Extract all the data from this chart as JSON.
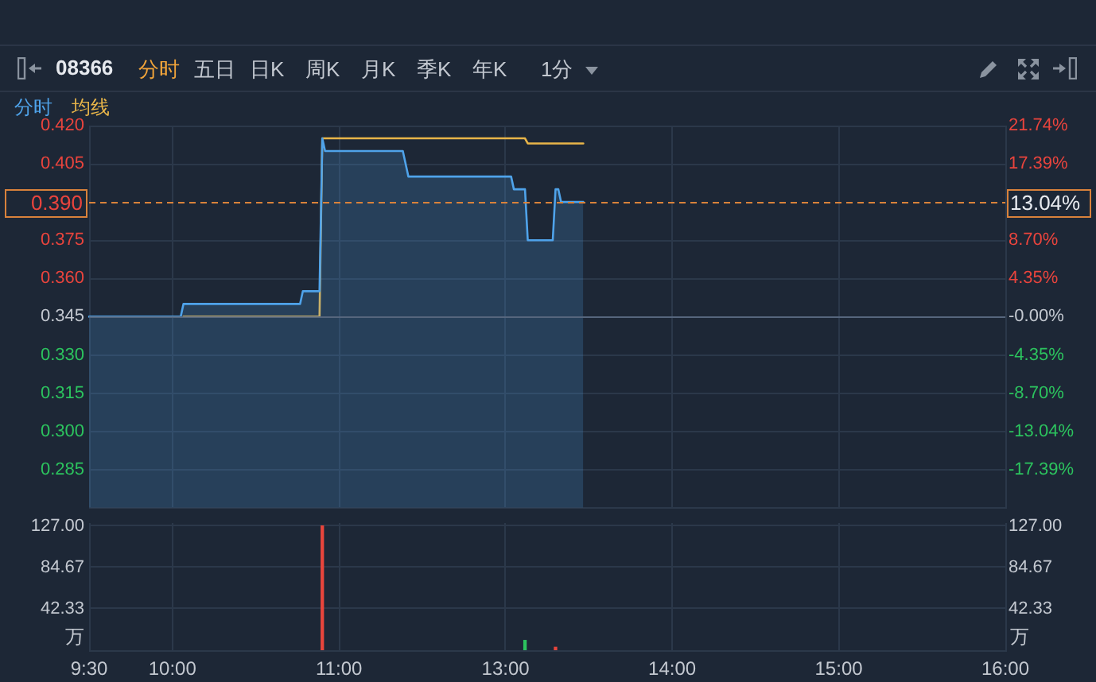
{
  "chart_data": [
    {
      "type": "area",
      "title": "08366",
      "annotations": [
        "分时",
        "五日",
        "日K",
        "周K",
        "月K",
        "季K",
        "年K",
        "1分",
        "13.04%"
      ],
      "categories": [
        null,
        null,
        null,
        null,
        null,
        null,
        null,
        null,
        null,
        null,
        null,
        null,
        null,
        null,
        null,
        null,
        null,
        null,
        null,
        null,
        null,
        null,
        null,
        null,
        null,
        null,
        null,
        null,
        null,
        null,
        null,
        null,
        null,
        null,
        null,
        null,
        null,
        null,
        null,
        null,
        null,
        null,
        null,
        null,
        null,
        null,
        null,
        null,
        null,
        null,
        null,
        null,
        null,
        null,
        null,
        null,
        null,
        null,
        null,
        null,
        null,
        null,
        null,
        null,
        null,
        null,
        null,
        null,
        null,
        null,
        null,
        null,
        null,
        null,
        null,
        null,
        null,
        null,
        null,
        null,
        null,
        null,
        null,
        null,
        null,
        null,
        null,
        null,
        null,
        null,
        null,
        null,
        null,
        null,
        null,
        null,
        null,
        null,
        null,
        null,
        null,
        null,
        null,
        null,
        null,
        null,
        null,
        null,
        null,
        null,
        null,
        null,
        null,
        null,
        null,
        null,
        null,
        null,
        null,
        null,
        null,
        null,
        null,
        null,
        null,
        null,
        null,
        null,
        null,
        null,
        null,
        null,
        null,
        null,
        null,
        null,
        null,
        null,
        null,
        null,
        null,
        null,
        null,
        null,
        null,
        null,
        null,
        null,
        null,
        null,
        null,
        null,
        null,
        null,
        null,
        null,
        null,
        null,
        null,
        null,
        null,
        null,
        null,
        null,
        null,
        null,
        null,
        null,
        null,
        null,
        null,
        null,
        null,
        null,
        null,
        null,
        null,
        null,
        null,
        null,
        null,
        null,
        null,
        null,
        null,
        null,
        null,
        null,
        null,
        null,
        null,
        null,
        null,
        null,
        null,
        null,
        null,
        null,
        null,
        null,
        null,
        null,
        null,
        null,
        null,
        null,
        null,
        null,
        null,
        null,
        null,
        null,
        null,
        null,
        null,
        null,
        null,
        null,
        null,
        null,
        null,
        null,
        null,
        null,
        null,
        null,
        null,
        null,
        null,
        null,
        null,
        null,
        null,
        null,
        null,
        null,
        null,
        null,
        null,
        null,
        null,
        null,
        null,
        null,
        null,
        null,
        null,
        null,
        null,
        null,
        null,
        null,
        null,
        null,
        null,
        null,
        null,
        null,
        null,
        null,
        null,
        null,
        null,
        null,
        null,
        null,
        null,
        null,
        null,
        null,
        null,
        null,
        null,
        null,
        null,
        null,
        null,
        null,
        null,
        null,
        null,
        null,
        null,
        null,
        null,
        null,
        null,
        null,
        null,
        null,
        null,
        null,
        null,
        null,
        null,
        null,
        null,
        null,
        null,
        null,
        null,
        null,
        null,
        null,
        null,
        null,
        null,
        null,
        null,
        null,
        null,
        null,
        null,
        null,
        null,
        null,
        null,
        null,
        null,
        null,
        null,
        null,
        null,
        null,
        null,
        null,
        null,
        null,
        null,
        null,
        null
      ],
      "ylim": [
        0.27,
        0.42
      ],
      "yticks": [
        0.285,
        {
          "value": 0.3,
          "label": "0.300"
        },
        0.315,
        {
          "value": 0.33,
          "label": "0.330"
        },
        0.345,
        {
          "value": 0.36,
          "label": "0.360"
        },
        0.375,
        0.405,
        {
          "value": 0.42,
          "label": "0.420"
        }
      ],
      "y2lim": [
        -21.74,
        21.74
      ],
      "y2ticks": [
        {
          "value": -17.39,
          "label": "-17.39%"
        },
        {
          "value": -13.04,
          "label": "-13.04%"
        },
        {
          "value": -8.7,
          "label": "-8.70%"
        },
        {
          "value": -4.35,
          "label": "-4.35%"
        },
        {
          "value": 0,
          "label": "-0.00%"
        },
        {
          "value": 4.35,
          "label": "4.35%"
        },
        {
          "value": 8.7,
          "label": "8.70%"
        },
        {
          "value": 17.39,
          "label": "17.39%"
        },
        {
          "value": 21.74,
          "label": "21.74%"
        }
      ],
      "series": [
        {
          "name": "分时",
          "color": "#4fa3ea",
          "values": [
            0.345,
            0.345,
            0.345,
            0.345,
            0.345,
            0.345,
            0.345,
            0.345,
            0.345,
            0.345,
            0.345,
            0.345,
            0.345,
            0.345,
            0.345,
            0.345,
            0.345,
            0.345,
            0.345,
            0.345,
            0.345,
            0.345,
            0.345,
            0.345,
            0.345,
            0.345,
            0.345,
            0.345,
            0.345,
            0.345,
            0.345,
            0.345,
            0.345,
            0.345,
            0.35,
            0.35,
            0.35,
            0.35,
            0.35,
            0.35,
            0.35,
            0.35,
            0.35,
            0.35,
            0.35,
            0.35,
            0.35,
            0.35,
            0.35,
            0.35,
            0.35,
            0.35,
            0.35,
            0.35,
            0.35,
            0.35,
            0.35,
            0.35,
            0.35,
            0.35,
            0.35,
            0.35,
            0.35,
            0.35,
            0.35,
            0.35,
            0.35,
            0.35,
            0.35,
            0.35,
            0.35,
            0.35,
            0.35,
            0.35,
            0.35,
            0.35,
            0.35,
            0.355,
            0.355,
            0.355,
            0.355,
            0.355,
            0.355,
            0.355,
            0.415,
            0.41,
            0.41,
            0.41,
            0.41,
            0.41,
            0.41,
            0.41,
            0.41,
            0.41,
            0.41,
            0.41,
            0.41,
            0.41,
            0.41,
            0.41,
            0.41,
            0.41,
            0.41,
            0.41,
            0.41,
            0.41,
            0.41,
            0.41,
            0.41,
            0.41,
            0.41,
            0.41,
            0.41,
            0.41,
            0.405,
            0.4,
            0.4,
            0.4,
            0.4,
            0.4,
            0.4,
            0.4,
            0.4,
            0.4,
            0.4,
            0.4,
            0.4,
            0.4,
            0.4,
            0.4,
            0.4,
            0.4,
            0.4,
            0.4,
            0.4,
            0.4,
            0.4,
            0.4,
            0.4,
            0.4,
            0.4,
            0.4,
            0.4,
            0.4,
            0.4,
            0.4,
            0.4,
            0.4,
            0.4,
            0.4,
            0.4,
            0.4,
            0.4,
            0.395,
            0.395,
            0.395,
            0.395,
            0.395,
            0.375,
            0.375,
            0.375,
            0.375,
            0.375,
            0.375,
            0.375,
            0.375,
            0.375,
            0.375,
            0.395,
            0.395,
            0.39,
            0.39,
            0.39,
            0.39,
            0.39,
            0.39,
            0.39,
            0.39,
            0.39,
            null,
            null,
            null,
            null,
            null,
            null,
            null,
            null,
            null,
            null,
            null,
            null,
            null,
            null,
            null,
            null,
            null,
            null,
            null,
            null,
            null,
            null,
            null,
            null,
            null,
            null,
            null,
            null,
            null,
            null,
            null,
            null,
            null,
            null,
            null,
            null,
            null,
            null,
            null,
            null,
            null,
            null,
            null,
            null,
            null,
            null,
            null,
            null,
            null,
            null,
            null,
            null,
            null,
            null,
            null,
            null,
            null,
            null,
            null,
            null,
            null,
            null,
            null,
            null,
            null,
            null,
            null,
            null,
            null,
            null,
            null,
            null,
            null,
            null,
            null,
            null,
            null,
            null,
            null,
            null,
            null,
            null,
            null,
            null,
            null,
            null,
            null,
            null,
            null,
            null,
            null,
            null,
            null,
            null,
            null,
            null,
            null,
            null,
            null,
            null,
            null,
            null,
            null,
            null,
            null,
            null,
            null,
            null,
            null,
            null,
            null,
            null,
            null,
            null,
            null,
            null,
            null,
            null,
            null,
            null,
            null,
            null,
            null,
            null,
            null,
            null,
            null,
            null,
            null,
            null,
            null,
            null,
            null,
            null,
            null,
            null,
            null,
            null,
            null,
            null,
            null,
            null,
            null,
            null,
            null,
            null,
            null,
            null,
            null,
            null,
            null,
            null
          ]
        },
        {
          "name": "均线",
          "color": "#e8b549",
          "type": "line",
          "values": [
            null,
            null,
            null,
            null,
            null,
            null,
            null,
            null,
            null,
            null,
            null,
            null,
            null,
            null,
            null,
            null,
            null,
            null,
            null,
            null,
            null,
            null,
            null,
            null,
            null,
            null,
            null,
            null,
            null,
            null,
            null,
            null,
            null,
            null,
            0.345,
            0.345,
            0.345,
            0.345,
            0.345,
            0.345,
            0.345,
            0.345,
            0.345,
            0.345,
            0.345,
            0.345,
            0.345,
            0.345,
            0.345,
            0.345,
            0.345,
            0.345,
            0.345,
            0.345,
            0.345,
            0.345,
            0.345,
            0.345,
            0.345,
            0.345,
            0.345,
            0.345,
            0.345,
            0.345,
            0.345,
            0.345,
            0.345,
            0.345,
            0.345,
            0.345,
            0.345,
            0.345,
            0.345,
            0.345,
            0.345,
            0.345,
            0.345,
            0.345,
            0.345,
            0.345,
            0.345,
            0.345,
            0.345,
            0.345,
            0.415,
            0.415,
            0.415,
            0.415,
            0.415,
            0.415,
            0.415,
            0.415,
            0.415,
            0.415,
            0.415,
            0.415,
            0.415,
            0.415,
            0.415,
            0.415,
            0.415,
            0.415,
            0.415,
            0.415,
            0.415,
            0.415,
            0.415,
            0.415,
            0.415,
            0.415,
            0.415,
            0.415,
            0.415,
            0.415,
            0.415,
            0.415,
            0.415,
            0.415,
            0.415,
            0.415,
            0.415,
            0.415,
            0.415,
            0.415,
            0.415,
            0.415,
            0.415,
            0.415,
            0.415,
            0.415,
            0.415,
            0.415,
            0.415,
            0.415,
            0.415,
            0.415,
            0.415,
            0.415,
            0.415,
            0.415,
            0.415,
            0.415,
            0.415,
            0.415,
            0.415,
            0.415,
            0.415,
            0.415,
            0.415,
            0.415,
            0.415,
            0.415,
            0.415,
            0.415,
            0.415,
            0.415,
            0.415,
            0.415,
            0.413,
            0.413,
            0.413,
            0.413,
            0.413,
            0.413,
            0.413,
            0.413,
            0.413,
            0.413,
            0.413,
            0.413,
            0.413,
            0.413,
            0.413,
            0.413,
            0.413,
            0.413,
            0.413,
            0.413,
            0.413,
            null,
            null,
            null,
            null,
            null,
            null,
            null,
            null,
            null,
            null,
            null,
            null,
            null,
            null,
            null,
            null,
            null,
            null,
            null,
            null,
            null,
            null,
            null,
            null,
            null,
            null,
            null,
            null,
            null,
            null,
            null,
            null,
            null,
            null,
            null,
            null,
            null,
            null,
            null,
            null,
            null,
            null,
            null,
            null,
            null,
            null,
            null,
            null,
            null,
            null,
            null,
            null,
            null,
            null,
            null,
            null,
            null,
            null,
            null,
            null,
            null,
            null,
            null,
            null,
            null,
            null,
            null,
            null,
            null,
            null,
            null,
            null,
            null,
            null,
            null,
            null,
            null,
            null,
            null,
            null,
            null,
            null,
            null,
            null,
            null,
            null,
            null,
            null,
            null,
            null,
            null,
            null,
            null,
            null,
            null,
            null,
            null,
            null,
            null,
            null,
            null,
            null,
            null,
            null,
            null,
            null,
            null,
            null,
            null,
            null,
            null,
            null,
            null,
            null,
            null,
            null,
            null,
            null,
            null,
            null,
            null,
            null,
            null,
            null,
            null,
            null,
            null,
            null,
            null,
            null,
            null,
            null,
            null,
            null,
            null,
            null,
            null,
            null,
            null,
            null,
            null,
            null,
            null,
            null,
            null,
            null,
            null,
            null,
            null,
            null,
            null,
            null
          ]
        }
      ],
      "ref_lines": [
        {
          "axis": "y",
          "value": 0.345,
          "color": "#56667d"
        },
        {
          "axis": "y",
          "value": 0.39,
          "label": "0.390",
          "color": "#d9823b",
          "line_style": "dashed"
        }
      ],
      "grid": true,
      "legend": "top left",
      "tick_labels": "y"
    },
    {
      "type": "bar",
      "categories": [
        "9:30",
        null,
        null,
        null,
        null,
        null,
        null,
        null,
        null,
        null,
        null,
        null,
        null,
        null,
        null,
        null,
        null,
        null,
        null,
        null,
        null,
        null,
        null,
        null,
        null,
        null,
        null,
        null,
        null,
        null,
        "10:00",
        null,
        null,
        null,
        null,
        null,
        null,
        null,
        null,
        null,
        null,
        null,
        null,
        null,
        null,
        null,
        null,
        null,
        null,
        null,
        null,
        null,
        null,
        null,
        null,
        null,
        null,
        null,
        null,
        null,
        null,
        null,
        null,
        null,
        null,
        null,
        null,
        null,
        null,
        null,
        null,
        null,
        null,
        null,
        null,
        null,
        null,
        null,
        null,
        null,
        null,
        null,
        null,
        null,
        null,
        null,
        null,
        null,
        null,
        null,
        "11:00",
        null,
        null,
        null,
        null,
        null,
        null,
        null,
        null,
        null,
        null,
        null,
        null,
        null,
        null,
        null,
        null,
        null,
        null,
        null,
        null,
        null,
        null,
        null,
        null,
        null,
        null,
        null,
        null,
        null,
        null,
        null,
        null,
        null,
        null,
        null,
        null,
        null,
        null,
        null,
        null,
        null,
        null,
        null,
        null,
        null,
        null,
        null,
        null,
        null,
        null,
        null,
        null,
        null,
        null,
        null,
        null,
        null,
        null,
        null,
        "13:00",
        null,
        null,
        null,
        null,
        null,
        null,
        null,
        null,
        null,
        null,
        null,
        null,
        null,
        null,
        null,
        null,
        null,
        null,
        null,
        null,
        null,
        null,
        null,
        null,
        null,
        null,
        null,
        null,
        null,
        null,
        null,
        null,
        null,
        null,
        null,
        null,
        null,
        null,
        null,
        null,
        null,
        null,
        null,
        null,
        null,
        null,
        null,
        null,
        null,
        null,
        null,
        null,
        null,
        null,
        null,
        null,
        null,
        null,
        null,
        "14:00",
        null,
        null,
        null,
        null,
        null,
        null,
        null,
        null,
        null,
        null,
        null,
        null,
        null,
        null,
        null,
        null,
        null,
        null,
        null,
        null,
        null,
        null,
        null,
        null,
        null,
        null,
        null,
        null,
        null,
        null,
        null,
        null,
        null,
        null,
        null,
        null,
        null,
        null,
        null,
        null,
        null,
        null,
        null,
        null,
        null,
        null,
        null,
        null,
        null,
        null,
        null,
        null,
        null,
        null,
        null,
        null,
        null,
        null,
        null,
        "15:00",
        null,
        null,
        null,
        null,
        null,
        null,
        null,
        null,
        null,
        null,
        null,
        null,
        null,
        null,
        null,
        null,
        null,
        null,
        null,
        null,
        null,
        null,
        null,
        null,
        null,
        null,
        null,
        null,
        null,
        null,
        null,
        null,
        null,
        null,
        null,
        null,
        null,
        null,
        null,
        null,
        null,
        null,
        null,
        null,
        null,
        null,
        null,
        null,
        null,
        null,
        null,
        null,
        null,
        null,
        null,
        null,
        null,
        null,
        null,
        "16:00"
      ],
      "values": [
        null,
        null,
        null,
        null,
        null,
        null,
        null,
        null,
        null,
        null,
        null,
        null,
        null,
        null,
        null,
        null,
        null,
        null,
        null,
        null,
        null,
        null,
        null,
        null,
        null,
        null,
        null,
        null,
        null,
        null,
        null,
        null,
        null,
        null,
        null,
        null,
        null,
        null,
        null,
        null,
        null,
        null,
        null,
        null,
        null,
        null,
        null,
        null,
        null,
        null,
        null,
        null,
        null,
        null,
        null,
        null,
        null,
        null,
        null,
        null,
        null,
        null,
        null,
        null,
        null,
        null,
        null,
        null,
        null,
        null,
        null,
        null,
        null,
        null,
        null,
        null,
        null,
        null,
        null,
        null,
        null,
        null,
        null,
        null,
        127,
        null,
        null,
        null,
        null,
        null,
        null,
        null,
        null,
        null,
        null,
        null,
        null,
        null,
        null,
        null,
        null,
        null,
        null,
        null,
        null,
        null,
        null,
        null,
        null,
        null,
        null,
        null,
        null,
        null,
        null,
        null,
        null,
        null,
        null,
        null,
        null,
        null,
        null,
        null,
        null,
        null,
        null,
        null,
        null,
        null,
        null,
        null,
        null,
        null,
        null,
        null,
        null,
        null,
        null,
        null,
        null,
        null,
        null,
        null,
        null,
        null,
        null,
        null,
        null,
        null,
        null,
        null,
        null,
        null,
        null,
        null,
        null,
        10,
        null,
        null,
        null,
        null,
        null,
        null,
        null,
        null,
        null,
        null,
        3,
        null,
        null,
        null,
        null,
        null,
        null,
        null,
        null,
        null,
        null,
        null,
        null,
        null,
        null,
        null,
        null,
        null,
        null,
        null,
        null,
        null,
        null,
        null,
        null,
        null,
        null,
        null,
        null,
        null,
        null,
        null,
        null,
        null,
        null,
        null,
        null,
        null,
        null,
        null,
        null,
        null,
        null,
        null,
        null,
        null,
        null,
        null,
        null,
        null,
        null,
        null,
        null,
        null,
        null,
        null,
        null,
        null,
        null,
        null,
        null,
        null,
        null,
        null,
        null,
        null,
        null,
        null,
        null,
        null,
        null,
        null,
        null,
        null,
        null,
        null,
        null,
        null,
        null,
        null,
        null,
        null,
        null,
        null,
        null,
        null,
        null,
        null,
        null,
        null,
        null,
        null,
        null,
        null,
        null,
        null,
        null,
        null,
        null,
        null,
        null,
        null,
        null,
        null,
        null,
        null,
        null,
        null,
        null,
        null,
        null,
        null,
        null,
        null,
        null,
        null,
        null,
        null,
        null,
        null,
        null,
        null,
        null,
        null,
        null,
        null,
        null,
        null,
        null,
        null,
        null,
        null,
        null,
        null,
        null,
        null,
        null,
        null,
        null,
        null,
        null,
        null,
        null,
        null,
        null,
        null,
        null,
        null,
        null,
        null,
        null,
        null,
        null,
        null,
        null,
        null,
        null,
        null,
        null,
        null,
        null,
        null,
        null
      ],
      "colors": [
        null,
        null,
        null,
        null,
        null,
        null,
        null,
        null,
        null,
        null,
        null,
        null,
        null,
        null,
        null,
        null,
        null,
        null,
        null,
        null,
        null,
        null,
        null,
        null,
        null,
        null,
        null,
        null,
        null,
        null,
        null,
        null,
        null,
        null,
        null,
        null,
        null,
        null,
        null,
        null,
        null,
        null,
        null,
        null,
        null,
        null,
        null,
        null,
        null,
        null,
        null,
        null,
        null,
        null,
        null,
        null,
        null,
        null,
        null,
        null,
        null,
        null,
        null,
        null,
        null,
        null,
        null,
        null,
        null,
        null,
        null,
        null,
        null,
        null,
        null,
        null,
        null,
        null,
        null,
        null,
        null,
        null,
        null,
        null,
        "#e8453c",
        null,
        null,
        null,
        null,
        null,
        null,
        null,
        null,
        null,
        null,
        null,
        null,
        null,
        null,
        null,
        null,
        null,
        null,
        null,
        null,
        null,
        null,
        null,
        null,
        null,
        null,
        null,
        null,
        null,
        null,
        null,
        null,
        null,
        null,
        null,
        null,
        null,
        null,
        null,
        null,
        null,
        null,
        null,
        null,
        null,
        null,
        null,
        null,
        null,
        null,
        null,
        null,
        null,
        null,
        null,
        null,
        null,
        null,
        null,
        null,
        null,
        null,
        null,
        null,
        null,
        null,
        null,
        null,
        null,
        null,
        null,
        null,
        "#2cc35e",
        null,
        null,
        null,
        null,
        null,
        null,
        null,
        null,
        null,
        null,
        "#e8453c",
        null,
        null,
        null,
        null,
        null,
        null,
        null,
        null,
        null,
        null,
        null,
        null,
        null,
        null,
        null,
        null,
        null,
        null,
        null,
        null,
        null,
        null,
        null,
        null,
        null,
        null,
        null,
        null,
        null,
        null,
        null,
        null,
        null,
        null,
        null,
        null,
        null,
        null,
        null,
        null,
        null,
        null,
        null,
        null,
        null,
        null,
        null,
        null,
        null,
        null,
        null,
        null,
        null,
        null,
        null,
        null,
        null,
        null,
        null,
        null,
        null,
        null,
        null,
        null,
        null,
        null,
        null,
        null,
        null,
        null,
        null,
        null,
        null,
        null,
        null,
        null,
        null,
        null,
        null,
        null,
        null,
        null,
        null,
        null,
        null,
        null,
        null,
        null,
        null,
        null,
        null,
        null,
        null,
        null,
        null,
        null,
        null,
        null,
        null,
        null,
        null,
        null,
        null,
        null,
        null,
        null,
        null,
        null,
        null,
        null,
        null,
        null,
        null,
        null,
        null,
        null,
        null,
        null,
        null,
        null,
        null,
        null,
        null,
        null,
        null,
        null,
        null,
        null,
        null,
        null,
        null,
        null,
        null,
        null,
        null,
        null,
        null,
        null,
        null,
        null,
        null,
        null,
        null,
        null,
        null,
        null,
        null,
        null,
        null,
        null,
        null,
        null,
        null,
        null,
        null,
        null,
        null,
        null,
        null,
        null,
        null,
        null
      ],
      "ylim": [
        0,
        130
      ],
      "yticks": [
        42.33,
        84.67,
        {
          "value": 127,
          "label": "127.00"
        }
      ],
      "y2lim": [
        0,
        130
      ],
      "y2ticks": [
        42.33,
        84.67,
        {
          "value": 127,
          "label": "127.00"
        }
      ],
      "ylabel": "万",
      "y2label": "万",
      "grid": true
    }
  ]
}
